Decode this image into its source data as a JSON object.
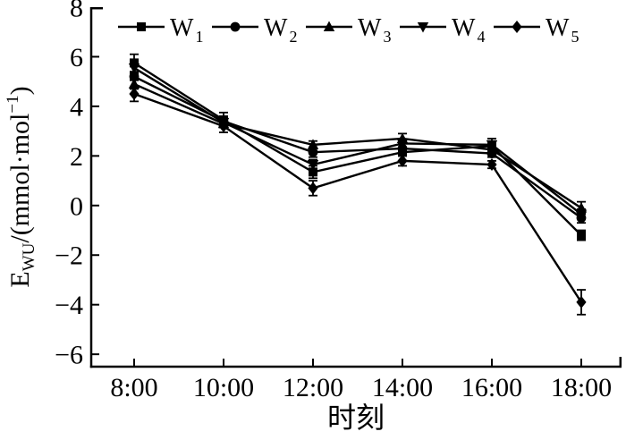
{
  "figure": {
    "background": "#ffffff",
    "ink_color": "#000000"
  },
  "chart_data": {
    "type": "line",
    "title": "",
    "xlabel": "时刻",
    "ylabel": "EWU/(mmol·mol−1)",
    "ylabel_parts": {
      "base": "E",
      "base_sub": "WU",
      "unit_pre": "/(mmol·mol",
      "unit_sup": "−1",
      "unit_post": ")"
    },
    "categories": [
      "8:00",
      "10:00",
      "12:00",
      "14:00",
      "16:00",
      "18:00"
    ],
    "ylim": [
      -6.5,
      8
    ],
    "yticks": [
      8,
      6,
      4,
      2,
      0,
      -2,
      -4,
      -6
    ],
    "ytick_labels": [
      "8",
      "6",
      "4",
      "2",
      "0",
      "−2",
      "−4",
      "−6"
    ],
    "grid": false,
    "legend_position": "top-inside",
    "marker_color": "#000000",
    "line_color": "#000000",
    "series": [
      {
        "name": "W1",
        "label_base": "W",
        "label_sub": "1",
        "marker": "square",
        "values": [
          5.75,
          3.45,
          1.35,
          2.15,
          2.4,
          -1.2
        ],
        "errors": [
          0.35,
          0.3,
          0.25,
          0.15,
          0.2,
          0.2
        ]
      },
      {
        "name": "W2",
        "label_base": "W",
        "label_sub": "2",
        "marker": "circle",
        "values": [
          5.2,
          3.4,
          2.15,
          2.3,
          2.1,
          -0.5
        ],
        "errors": [
          0.15,
          0.2,
          0.2,
          0.2,
          0.15,
          0.2
        ]
      },
      {
        "name": "W3",
        "label_base": "W",
        "label_sub": "3",
        "marker": "triangle-up",
        "values": [
          4.9,
          3.3,
          2.45,
          2.7,
          2.25,
          -0.1
        ],
        "errors": [
          0.2,
          0.15,
          0.15,
          0.2,
          0.15,
          0.25
        ]
      },
      {
        "name": "W4",
        "label_base": "W",
        "label_sub": "4",
        "marker": "triangle-down",
        "values": [
          5.55,
          3.35,
          1.65,
          2.5,
          2.45,
          -0.35
        ],
        "errors": [
          0.25,
          0.2,
          0.2,
          0.15,
          0.25,
          0.2
        ]
      },
      {
        "name": "W5",
        "label_base": "W",
        "label_sub": "5",
        "marker": "diamond",
        "values": [
          4.5,
          3.2,
          0.7,
          1.8,
          1.65,
          -3.9
        ],
        "errors": [
          0.3,
          0.25,
          0.3,
          0.2,
          0.15,
          0.5
        ]
      }
    ]
  }
}
